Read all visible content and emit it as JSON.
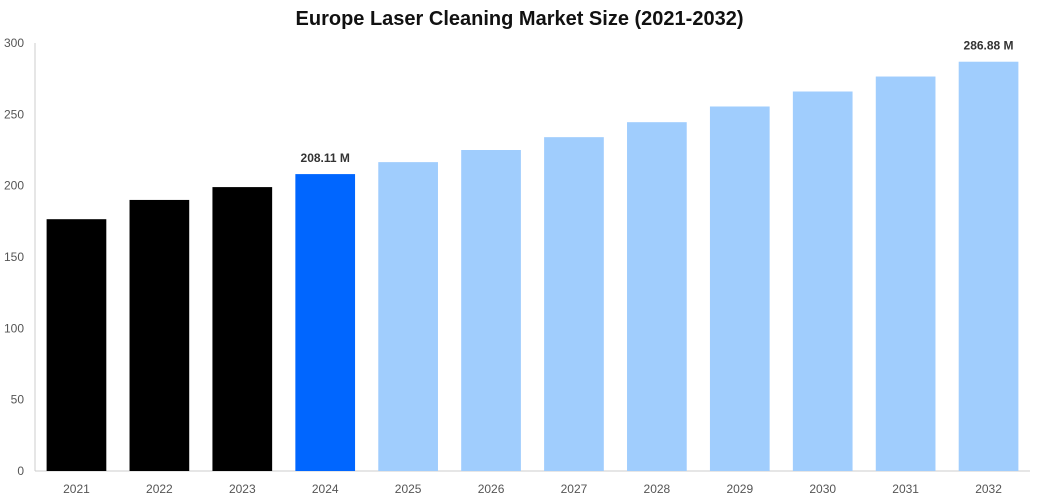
{
  "chart_data": {
    "type": "bar",
    "title": "Europe Laser Cleaning Market Size (2021-2032)",
    "xlabel": "",
    "ylabel": "",
    "ylim": [
      0,
      300
    ],
    "yticks": [
      0,
      50,
      100,
      150,
      200,
      250,
      300
    ],
    "grid": false,
    "categories": [
      "2021",
      "2022",
      "2023",
      "2024",
      "2025",
      "2026",
      "2027",
      "2028",
      "2029",
      "2030",
      "2031",
      "2032"
    ],
    "values": [
      176.5,
      190.0,
      199.0,
      208.11,
      216.5,
      225.0,
      234.0,
      244.5,
      255.5,
      266.0,
      276.5,
      286.88
    ],
    "bar_colors": [
      "#000000",
      "#000000",
      "#000000",
      "#0066ff",
      "#a0cdfd",
      "#a0cdfd",
      "#a0cdfd",
      "#a0cdfd",
      "#a0cdfd",
      "#a0cdfd",
      "#a0cdfd",
      "#a0cdfd"
    ],
    "data_labels": [
      {
        "category": "2024",
        "text": "208.11 M"
      },
      {
        "category": "2032",
        "text": "286.88 M"
      }
    ]
  },
  "colors": {
    "historical": "#000000",
    "base_year": "#0066ff",
    "forecast": "#a0cdfd",
    "axis": "#cccccc"
  }
}
